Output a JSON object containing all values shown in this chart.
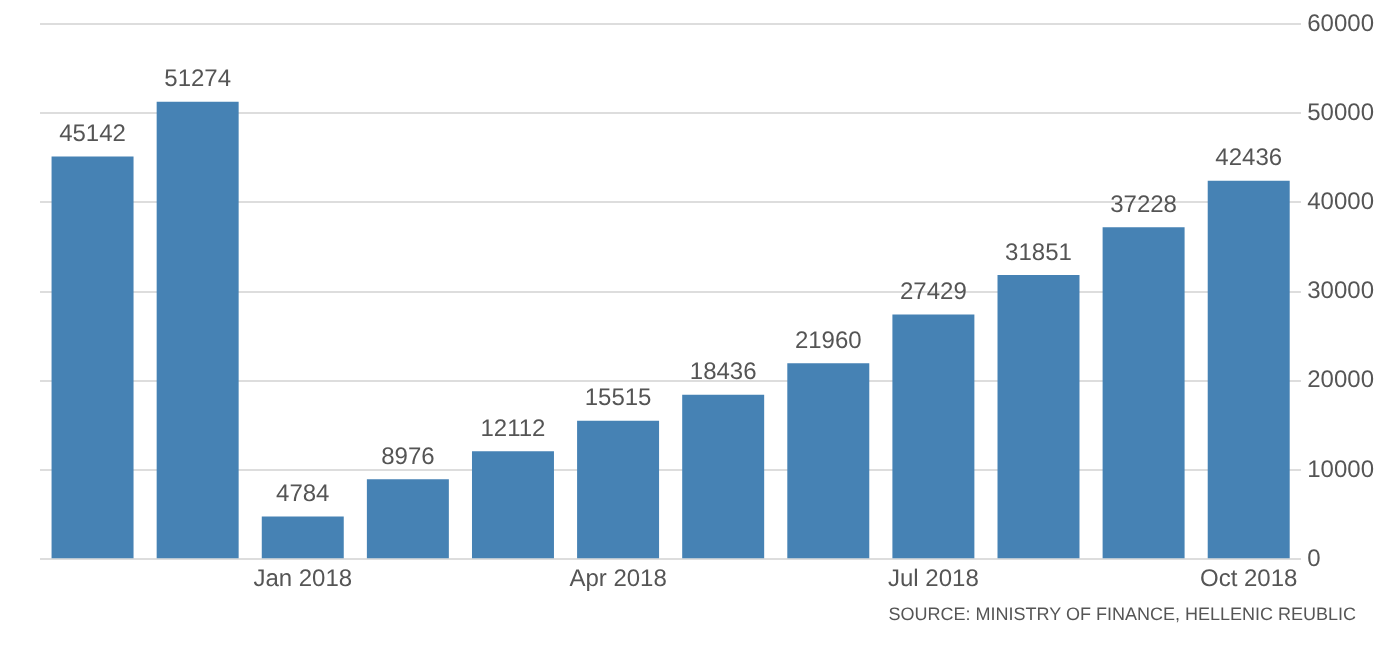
{
  "chart_data": {
    "type": "bar",
    "categories": [
      null,
      null,
      "Jan 2018",
      null,
      null,
      "Apr 2018",
      null,
      null,
      "Jul 2018",
      null,
      null,
      "Oct 2018"
    ],
    "values": [
      45142,
      51274,
      4784,
      8976,
      12112,
      15515,
      18436,
      21960,
      27429,
      31851,
      37228,
      42436
    ],
    "color": "#4682b4",
    "ylim": [
      0,
      60000
    ],
    "yticks": [
      0,
      10000,
      20000,
      30000,
      40000,
      50000,
      60000
    ],
    "grid": "y",
    "data_labels": true,
    "legend": false,
    "annotations": [
      "SOURCE: MINISTRY OF FINANCE, HELLENIC REUBLIC"
    ]
  }
}
